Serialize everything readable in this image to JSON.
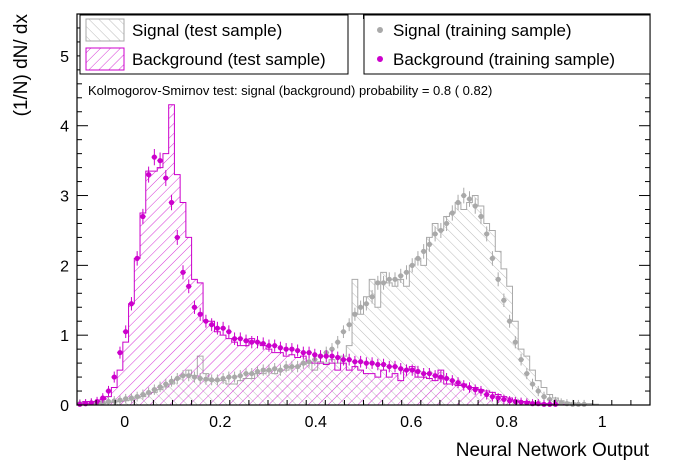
{
  "chart_data": {
    "type": "histogram",
    "xlabel": "Neural Network Output",
    "ylabel": "(1/N) dN/ dx",
    "xlim": [
      -0.1,
      1.1
    ],
    "ylim": [
      0,
      5.6
    ],
    "xticks": [
      0,
      0.2,
      0.4,
      0.6,
      0.8,
      1
    ],
    "xtick_labels": [
      "0",
      "0.2",
      "0.4",
      "0.6",
      "0.8",
      "1"
    ],
    "yticks": [
      0,
      1,
      2,
      3,
      4,
      5
    ],
    "ytick_labels": [
      "0",
      "1",
      "2",
      "3",
      "4",
      "5"
    ],
    "nbins": 100,
    "bin_range": [
      -0.1,
      1.1
    ],
    "legend": [
      {
        "key": "sig_test",
        "label": "Signal (test sample)"
      },
      {
        "key": "bkg_test",
        "label": "Background (test sample)"
      },
      {
        "key": "sig_train",
        "label": "Signal (training sample)"
      },
      {
        "key": "bkg_train",
        "label": "Background (training sample)"
      }
    ],
    "ks_text": "Kolmogorov-Smirnov test: signal (background) probability =   0.8 ( 0.82)",
    "colors": {
      "signal": "#a9a9a9",
      "background": "#cc00cc"
    },
    "series": [
      {
        "name": "Signal (test sample)",
        "style": "hatched-histogram",
        "color": "#a9a9a9",
        "values": [
          0,
          0.01,
          0.01,
          0.02,
          0.02,
          0.03,
          0.04,
          0.05,
          0.06,
          0.07,
          0.1,
          0.12,
          0.16,
          0.18,
          0.22,
          0.26,
          0.3,
          0.37,
          0.42,
          0.5,
          0.42,
          0.7,
          0.45,
          0.35,
          0.35,
          0.35,
          0.3,
          0.3,
          0.35,
          0.38,
          0.38,
          0.45,
          0.45,
          0.5,
          0.45,
          0.5,
          0.5,
          0.55,
          0.55,
          0.58,
          0.6,
          0.5,
          0.62,
          0.6,
          0.65,
          0.6,
          0.7,
          0.85,
          1.8,
          1.3,
          1.55,
          1.8,
          1.4,
          1.9,
          1.75,
          1.7,
          1.8,
          1.7,
          2.0,
          2.1,
          2.0,
          2.4,
          2.6,
          2.5,
          2.7,
          2.75,
          2.9,
          2.8,
          2.9,
          3.0,
          2.85,
          2.6,
          2.5,
          2.2,
          1.95,
          1.7,
          1.2,
          0.8,
          0.7,
          0.5,
          0.35,
          0.25,
          0.15,
          0.1,
          0.06,
          0.04,
          0.03,
          0.02,
          0.02,
          0.02,
          0.01,
          0,
          0,
          0,
          0,
          0,
          0,
          0,
          0,
          0
        ]
      },
      {
        "name": "Background (test sample)",
        "style": "hatched-histogram",
        "color": "#cc00cc",
        "values": [
          0.02,
          0.05,
          0.05,
          0.05,
          0.08,
          0.12,
          0.25,
          0.5,
          0.9,
          1.45,
          2.1,
          2.75,
          3.35,
          3.35,
          3.4,
          3.6,
          4.3,
          3.3,
          2.9,
          2.4,
          1.8,
          1.75,
          1.2,
          1.2,
          1.05,
          1.0,
          0.95,
          0.9,
          0.85,
          0.85,
          0.95,
          0.9,
          0.85,
          0.8,
          0.75,
          0.75,
          0.7,
          0.72,
          0.68,
          0.7,
          0.62,
          0.6,
          0.6,
          0.58,
          0.6,
          0.5,
          0.6,
          0.5,
          0.55,
          0.5,
          0.45,
          0.45,
          0.4,
          0.5,
          0.4,
          0.45,
          0.35,
          0.5,
          0.55,
          0.4,
          0.4,
          0.38,
          0.35,
          0.5,
          0.3,
          0.3,
          0.28,
          0.3,
          0.25,
          0.25,
          0.22,
          0.2,
          0.18,
          0.15,
          0.12,
          0.1,
          0.07,
          0.05,
          0.05,
          0.03,
          0.02,
          0.02,
          0.01,
          0.01,
          0.01,
          0,
          0,
          0,
          0,
          0,
          0,
          0,
          0,
          0,
          0,
          0,
          0,
          0,
          0,
          0
        ]
      },
      {
        "name": "Signal (training sample)",
        "style": "points",
        "color": "#a9a9a9",
        "values": [
          0.02,
          0.02,
          0.03,
          0.03,
          0.04,
          0.05,
          0.06,
          0.07,
          0.09,
          0.1,
          0.12,
          0.15,
          0.18,
          0.22,
          0.26,
          0.3,
          0.34,
          0.38,
          0.42,
          0.42,
          0.4,
          0.38,
          0.37,
          0.36,
          0.36,
          0.38,
          0.4,
          0.4,
          0.42,
          0.45,
          0.45,
          0.48,
          0.5,
          0.5,
          0.52,
          0.5,
          0.55,
          0.55,
          0.55,
          0.6,
          0.62,
          0.65,
          0.7,
          0.75,
          0.8,
          0.9,
          1.05,
          1.15,
          1.3,
          1.4,
          1.45,
          1.55,
          1.75,
          1.75,
          1.8,
          1.8,
          1.85,
          1.9,
          2.0,
          2.1,
          2.2,
          2.3,
          2.45,
          2.5,
          2.6,
          2.75,
          2.9,
          3.0,
          2.95,
          2.85,
          2.7,
          2.45,
          2.1,
          1.8,
          1.5,
          1.2,
          0.9,
          0.65,
          0.45,
          0.3,
          0.2,
          0.12,
          0.08,
          0.05,
          0.03,
          0.02,
          0.01,
          0.01,
          0.01,
          0,
          0,
          0,
          0,
          0,
          0,
          0,
          0,
          0,
          0,
          0
        ]
      },
      {
        "name": "Background (training sample)",
        "style": "points",
        "color": "#cc00cc",
        "values": [
          0.01,
          0.02,
          0.03,
          0.05,
          0.1,
          0.2,
          0.4,
          0.75,
          1.05,
          1.45,
          2.1,
          2.7,
          3.3,
          3.55,
          3.5,
          3.25,
          2.9,
          2.4,
          1.9,
          1.7,
          1.4,
          1.3,
          1.2,
          1.15,
          1.1,
          1.1,
          1.05,
          0.95,
          0.95,
          0.92,
          0.9,
          0.9,
          0.88,
          0.85,
          0.85,
          0.82,
          0.8,
          0.8,
          0.78,
          0.75,
          0.75,
          0.72,
          0.7,
          0.7,
          0.7,
          0.68,
          0.65,
          0.65,
          0.62,
          0.62,
          0.6,
          0.6,
          0.58,
          0.58,
          0.55,
          0.55,
          0.52,
          0.5,
          0.5,
          0.48,
          0.45,
          0.45,
          0.42,
          0.4,
          0.38,
          0.35,
          0.32,
          0.28,
          0.25,
          0.22,
          0.2,
          0.15,
          0.12,
          0.1,
          0.08,
          0.06,
          0.05,
          0.04,
          0.03,
          0.02,
          0.02,
          0.01,
          0.01,
          0.01,
          0,
          0,
          0,
          0,
          0,
          0,
          0,
          0,
          0,
          0,
          0,
          0,
          0,
          0,
          0,
          0
        ]
      }
    ]
  }
}
